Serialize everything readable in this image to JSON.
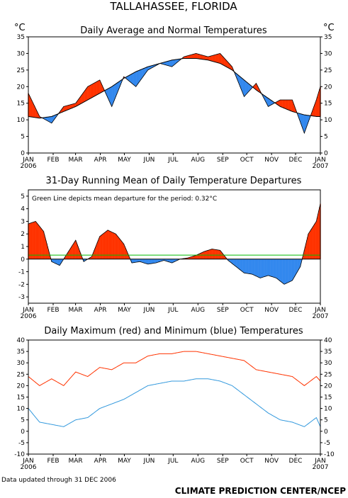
{
  "station_title": "TALLAHASSEE, FLORIDA",
  "footer_note": "Data updated through 31 DEC 2006",
  "credit": "CLIMATE PREDICTION CENTER/NCEP",
  "colors": {
    "above": "#ff3300",
    "below": "#3388ee",
    "normal_line": "#000000",
    "mean_line": "#00bb00",
    "max_line": "#ff3300",
    "min_line": "#3399dd"
  },
  "chart_data": [
    {
      "type": "area",
      "title": "Daily Average and Normal Temperatures",
      "unit_left": "°C",
      "unit_right": "°C",
      "ylim": [
        0,
        35
      ],
      "yticks": [
        "0",
        "5",
        "10",
        "15",
        "20",
        "25",
        "30",
        "35"
      ],
      "x_tick_labels": [
        "JAN",
        "FEB",
        "MAR",
        "APR",
        "MAY",
        "JUN",
        "JUL",
        "AUG",
        "SEP",
        "OCT",
        "NOV",
        "DEC",
        "JAN"
      ],
      "x_start_label": "2006",
      "x_end_label": "2007",
      "x": [
        1,
        15,
        30,
        45,
        60,
        75,
        90,
        105,
        120,
        135,
        150,
        165,
        180,
        195,
        210,
        225,
        240,
        255,
        270,
        285,
        300,
        315,
        330,
        345,
        360,
        365
      ],
      "normal": [
        11,
        10.5,
        11,
        12.5,
        14,
        16,
        18,
        20,
        22.5,
        24.5,
        26,
        27,
        28,
        28.5,
        28.5,
        28,
        27,
        25,
        22,
        19,
        16.5,
        14,
        12.5,
        11.5,
        11,
        11
      ],
      "average": [
        18,
        11,
        9,
        14,
        15,
        20,
        22,
        14,
        23,
        20,
        25,
        27,
        26,
        29,
        30,
        29,
        30,
        26,
        17,
        21,
        14,
        16,
        16,
        6,
        16,
        20
      ]
    },
    {
      "type": "area",
      "title": "31-Day Running Mean of Daily Temperature Departures",
      "annotation": "Green Line depicts mean departure for the period: 0.32°C",
      "mean_departure": 0.32,
      "ylim": [
        -3.5,
        5.5
      ],
      "yticks": [
        "-3",
        "-2",
        "-1",
        "0",
        "1",
        "2",
        "3",
        "4",
        "5"
      ],
      "x_tick_labels": [
        "JAN",
        "FEB",
        "MAR",
        "APR",
        "MAY",
        "JUN",
        "JUL",
        "AUG",
        "SEP",
        "OCT",
        "NOV",
        "DEC",
        "JAN"
      ],
      "x_start_label": "2006",
      "x_end_label": "2007",
      "x": [
        1,
        10,
        20,
        30,
        40,
        50,
        60,
        70,
        80,
        90,
        100,
        110,
        120,
        130,
        140,
        150,
        160,
        170,
        180,
        190,
        200,
        210,
        220,
        230,
        240,
        250,
        260,
        270,
        280,
        290,
        300,
        310,
        320,
        330,
        340,
        350,
        360,
        365
      ],
      "departure": [
        2.8,
        3.0,
        2.2,
        -0.2,
        -0.5,
        0.5,
        1.5,
        -0.2,
        0.2,
        1.8,
        2.3,
        2.0,
        1.2,
        -0.3,
        -0.2,
        -0.4,
        -0.3,
        -0.1,
        -0.3,
        0,
        0.1,
        0.3,
        0.6,
        0.8,
        0.7,
        -0.1,
        -0.6,
        -1.1,
        -1.2,
        -1.5,
        -1.3,
        -1.5,
        -2.0,
        -1.7,
        -0.6,
        2.0,
        3.0,
        4.4
      ]
    },
    {
      "type": "line",
      "title": "Daily Maximum (red) and Minimum (blue) Temperatures",
      "ylim": [
        -10,
        40
      ],
      "yticks": [
        "-10",
        "-5",
        "0",
        "5",
        "10",
        "15",
        "20",
        "25",
        "30",
        "35",
        "40"
      ],
      "x_tick_labels": [
        "JAN",
        "FEB",
        "MAR",
        "APR",
        "MAY",
        "JUN",
        "JUL",
        "AUG",
        "SEP",
        "OCT",
        "NOV",
        "DEC",
        "JAN"
      ],
      "x_start_label": "2006",
      "x_end_label": "2007",
      "series": [
        {
          "name": "Maximum",
          "x": [
            1,
            15,
            30,
            45,
            60,
            75,
            90,
            105,
            120,
            135,
            150,
            165,
            180,
            195,
            210,
            225,
            240,
            255,
            270,
            285,
            300,
            315,
            330,
            345,
            360,
            365
          ],
          "values": [
            24,
            20,
            23,
            20,
            26,
            24,
            28,
            27,
            30,
            30,
            33,
            34,
            34,
            35,
            35,
            34,
            33,
            32,
            31,
            27,
            26,
            25,
            24,
            20,
            24,
            22
          ]
        },
        {
          "name": "Minimum",
          "x": [
            1,
            15,
            30,
            45,
            60,
            75,
            90,
            105,
            120,
            135,
            150,
            165,
            180,
            195,
            210,
            225,
            240,
            255,
            270,
            285,
            300,
            315,
            330,
            345,
            360,
            365
          ],
          "values": [
            10,
            4,
            3,
            2,
            5,
            6,
            10,
            12,
            14,
            17,
            20,
            21,
            22,
            22,
            23,
            23,
            22,
            20,
            16,
            12,
            8,
            5,
            4,
            2,
            6,
            2
          ]
        }
      ]
    }
  ]
}
